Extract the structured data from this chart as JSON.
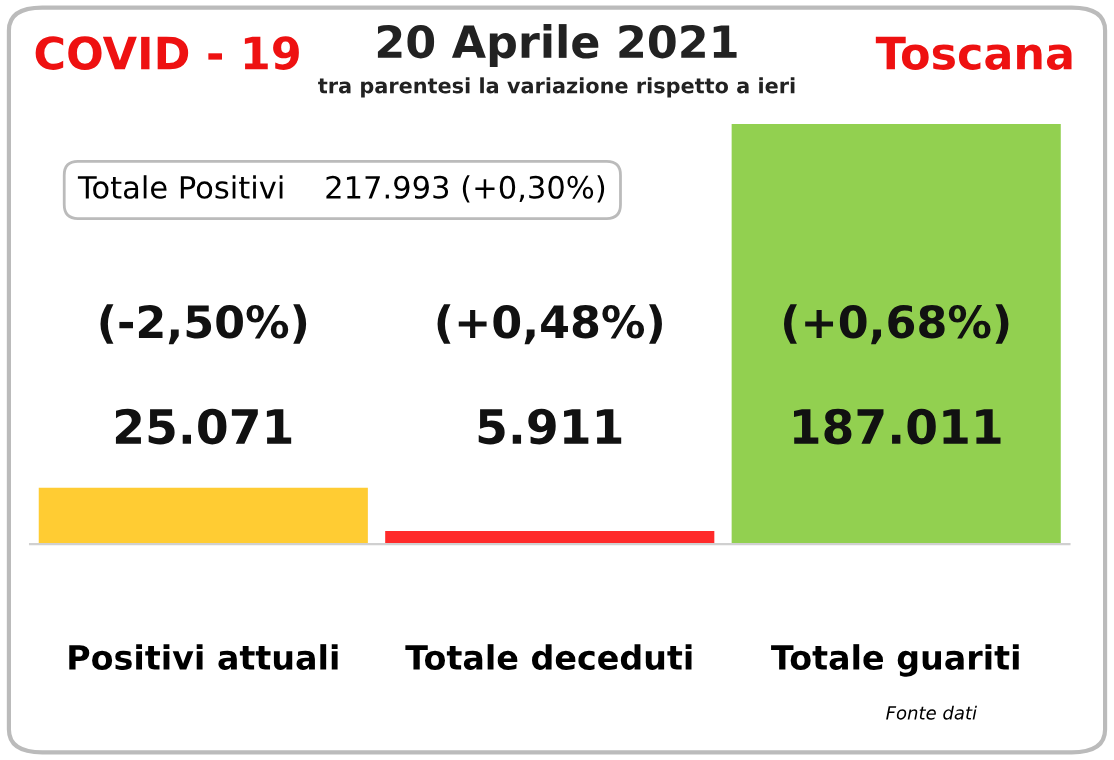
{
  "chart_data": {
    "type": "bar",
    "title": "20 Aprile 2021",
    "subtitle": "tra parentesi la variazione rispetto a ieri",
    "categories": [
      "Positivi attuali",
      "Totale deceduti",
      "Totale guariti"
    ],
    "values": [
      25071,
      5911,
      187011
    ],
    "colors": [
      "#ffcc33",
      "#ff2a2a",
      "#92d050"
    ],
    "value_labels": [
      "25.071",
      "5.911",
      "187.011"
    ],
    "annotations": [
      "(-2,50%)",
      "(+0,48%)",
      "(+0,68%)",
      "COVID - 19",
      "Toscana",
      "Totale Positivi    217.993 (+0,30%)",
      "Fonte dati"
    ],
    "grid": false,
    "legend": false
  }
}
